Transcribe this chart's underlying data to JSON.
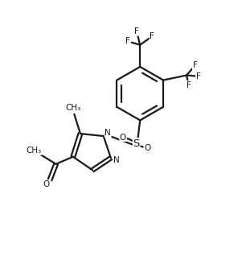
{
  "background_color": "#ffffff",
  "line_color": "#1a1a1a",
  "line_width": 1.6,
  "figsize": [
    3.06,
    3.23
  ],
  "dpi": 100,
  "xlim": [
    0,
    100
  ],
  "ylim": [
    0,
    106
  ]
}
